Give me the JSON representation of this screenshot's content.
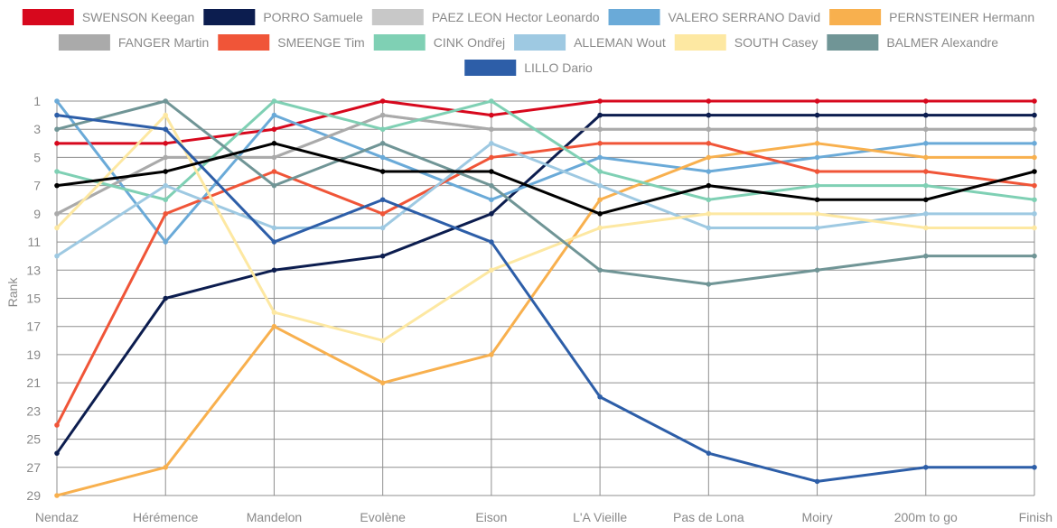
{
  "chart_data": {
    "type": "line",
    "title": "",
    "xlabel": "",
    "ylabel": "Rank",
    "ylim": [
      29,
      1
    ],
    "y_inverted": true,
    "yticks": [
      1,
      3,
      5,
      7,
      9,
      11,
      13,
      15,
      17,
      19,
      21,
      23,
      25,
      27,
      29
    ],
    "grid": true,
    "legend_position": "top",
    "categories": [
      "Nendaz",
      "Hérémence",
      "Mandelon",
      "Evolène",
      "Eison",
      "L'A Vieille",
      "Pas de Lona",
      "Moiry",
      "200m to go",
      "Finish"
    ],
    "series": [
      {
        "name": "SWENSON Keegan",
        "color": "#d7081d",
        "values": [
          4,
          4,
          3,
          1,
          2,
          1,
          1,
          1,
          1,
          1
        ]
      },
      {
        "name": "PORRO Samuele",
        "color": "#0c1d4f",
        "values": [
          26,
          15,
          13,
          12,
          9,
          2,
          2,
          2,
          2,
          2
        ]
      },
      {
        "name": "PAEZ LEON Hector Leonardo",
        "color": "#c8c8c8",
        "values": [
          9,
          5,
          5,
          2,
          3,
          3,
          3,
          3,
          3,
          3
        ]
      },
      {
        "name": "VALERO SERRANO David",
        "color": "#6aaad8",
        "values": [
          1,
          11,
          2,
          5,
          8,
          5,
          6,
          5,
          4,
          4
        ]
      },
      {
        "name": "PERNSTEINER Hermann",
        "color": "#f8b04e",
        "values": [
          29,
          27,
          17,
          21,
          19,
          8,
          5,
          4,
          5,
          5
        ]
      },
      {
        "name": "FANGER Martin",
        "color": "#aaaaaa",
        "values": [
          9,
          5,
          5,
          2,
          3,
          3,
          3,
          3,
          3,
          3
        ]
      },
      {
        "name": "SMEENGE Tim",
        "color": "#f05538",
        "values": [
          24,
          9,
          6,
          9,
          5,
          4,
          4,
          6,
          6,
          7
        ]
      },
      {
        "name": "CINK Ondřej",
        "color": "#7fd0b4",
        "values": [
          6,
          8,
          1,
          3,
          1,
          6,
          8,
          7,
          7,
          8
        ]
      },
      {
        "name": "ALLEMAN Wout",
        "color": "#9ec9e2",
        "values": [
          12,
          7,
          10,
          10,
          4,
          7,
          10,
          10,
          9,
          9
        ]
      },
      {
        "name": "SOUTH Casey",
        "color": "#fde8a2",
        "values": [
          10,
          2,
          16,
          18,
          13,
          10,
          9,
          9,
          10,
          10
        ]
      },
      {
        "name": "BALMER Alexandre",
        "color": "#709596",
        "values": [
          3,
          1,
          7,
          4,
          7,
          13,
          14,
          13,
          12,
          12
        ]
      },
      {
        "name": "LILLO Dario",
        "color": "#2d5ea8",
        "values": [
          2,
          3,
          11,
          8,
          11,
          22,
          26,
          28,
          27,
          27
        ]
      },
      {
        "name": "",
        "color": "#000000",
        "values": [
          7,
          6,
          4,
          6,
          6,
          9,
          7,
          8,
          8,
          6
        ]
      }
    ],
    "legend": [
      "SWENSON Keegan",
      "PORRO Samuele",
      "PAEZ LEON Hector Leonardo",
      "VALERO SERRANO David",
      "PERNSTEINER Hermann",
      "FANGER Martin",
      "SMEENGE Tim",
      "CINK Ondřej",
      "ALLEMAN Wout",
      "SOUTH Casey",
      "BALMER Alexandre",
      "LILLO Dario"
    ]
  }
}
